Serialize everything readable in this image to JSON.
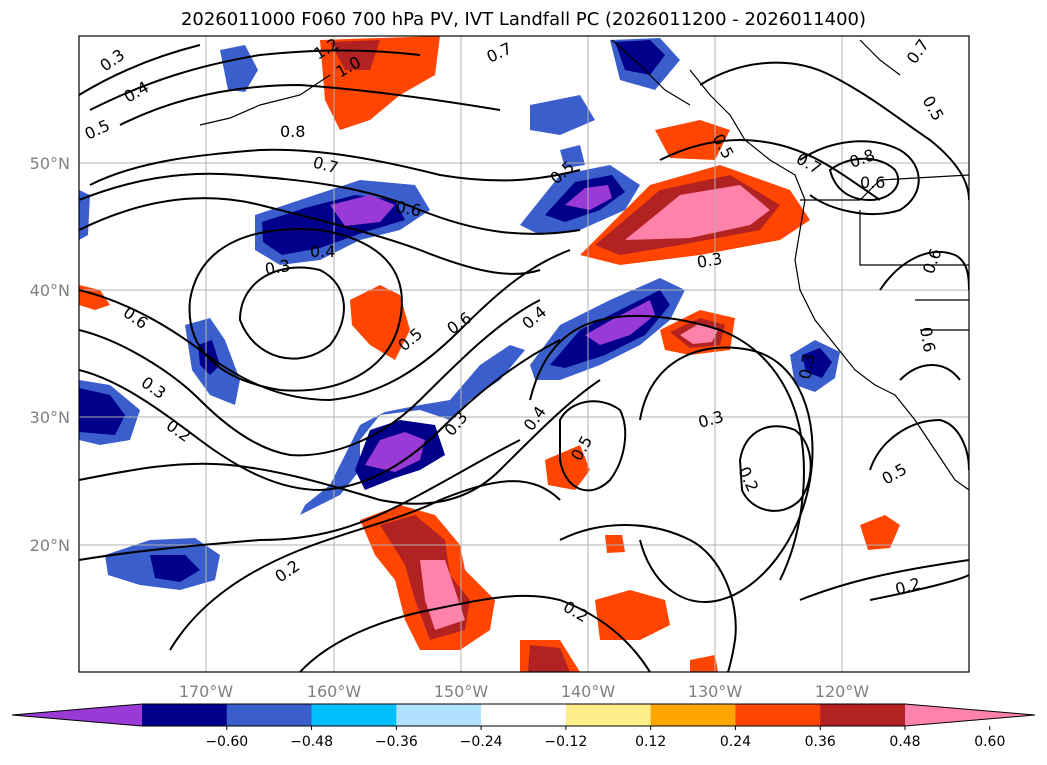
{
  "title": "2026011000 F060 700 hPa PV, IVT Landfall PC (2026011200 - 2026011400)",
  "map": {
    "lat_labels": [
      "50°N",
      "40°N",
      "30°N",
      "20°N"
    ],
    "lon_labels": [
      "170°W",
      "160°W",
      "150°W",
      "140°W",
      "130°W",
      "120°W"
    ],
    "extent": {
      "lon_min": -180,
      "lon_max": -110,
      "lat_min": 10,
      "lat_max": 60
    },
    "contour_labels": [
      "0.3",
      "0.4",
      "0.5",
      "0.7",
      "1.2",
      "1.0",
      "0.8",
      "0.7",
      "0.6",
      "0.4",
      "0.3",
      "0.6",
      "0.5",
      "0.6",
      "0.4",
      "0.5",
      "0.3",
      "0.2",
      "0.3",
      "0.4",
      "0.5",
      "0.3",
      "0.2",
      "0.2",
      "0.2",
      "0.2",
      "0.5",
      "0.7",
      "0.8",
      "0.6",
      "0.6",
      "0.5",
      "0.6",
      "0.7",
      "0.5",
      "0.3",
      "0.3"
    ]
  },
  "colorbar": {
    "ticks": [
      "−0.60",
      "−0.48",
      "−0.36",
      "−0.24",
      "−0.12",
      "0.12",
      "0.24",
      "0.36",
      "0.48",
      "0.60"
    ],
    "colors": [
      "#9a3ad6",
      "#00008b",
      "#3a5fcd",
      "#00bfff",
      "#b0e2ff",
      "#ffffff",
      "#ffec8b",
      "#ffa500",
      "#ff4500",
      "#b22222",
      "#ff82ab"
    ]
  }
}
